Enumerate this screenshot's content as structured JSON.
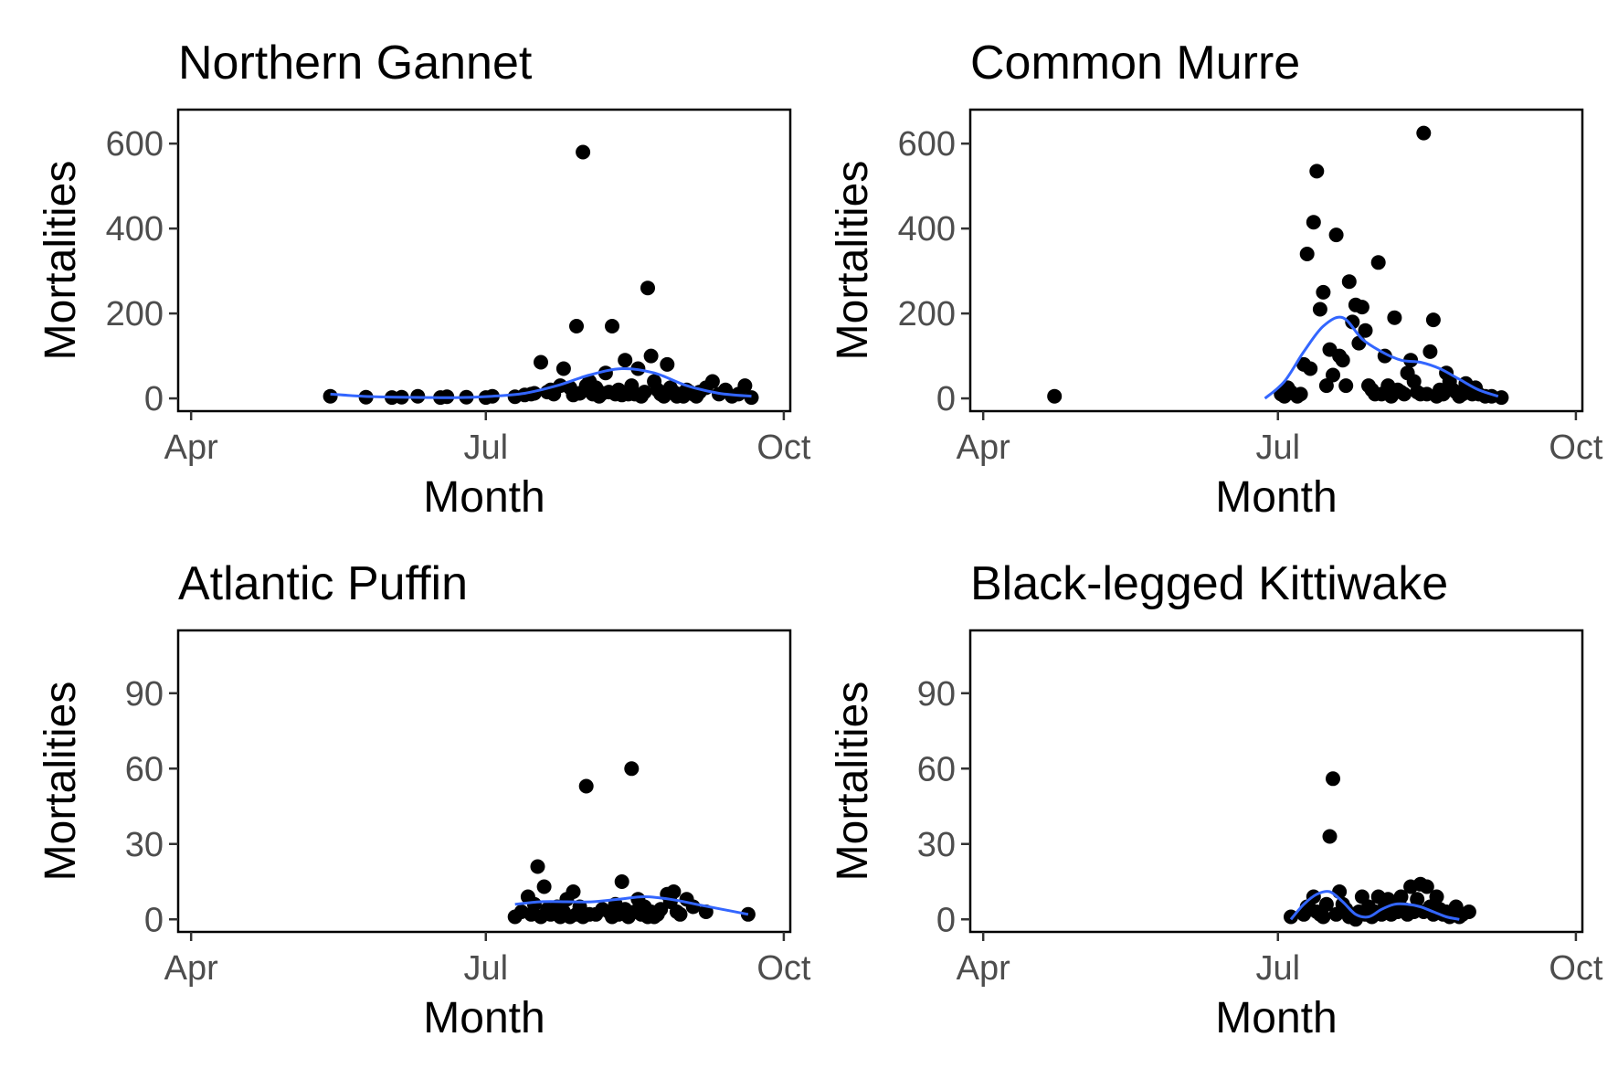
{
  "chart_data": [
    {
      "type": "scatter",
      "title": "Northern Gannet",
      "xlabel": "Month",
      "ylabel": "Mortalities",
      "x_ticks": [
        "Apr",
        "Jul",
        "Oct"
      ],
      "y_ticks": [
        0,
        200,
        400,
        600
      ],
      "xlim": [
        "Mar 28",
        "Oct 3"
      ],
      "ylim": [
        -30,
        680
      ],
      "grid": false,
      "series": [
        {
          "kind": "points",
          "x": [
            "May 14",
            "May 25",
            "Jun 2",
            "Jun 5",
            "Jun 10",
            "Jun 17",
            "Jun 19",
            "Jun 25",
            "Jul 1",
            "Jul 3",
            "Jul 10",
            "Jul 13",
            "Jul 15",
            "Jul 16",
            "Jul 18",
            "Jul 20",
            "Jul 21",
            "Jul 22",
            "Jul 24",
            "Jul 25",
            "Jul 27",
            "Jul 28",
            "Jul 29",
            "Jul 30",
            "Jul 31",
            "Aug 1",
            "Aug 2",
            "Aug 3",
            "Aug 4",
            "Aug 5",
            "Aug 6",
            "Aug 7",
            "Aug 8",
            "Aug 9",
            "Aug 10",
            "Aug 11",
            "Aug 12",
            "Aug 13",
            "Aug 14",
            "Aug 15",
            "Aug 16",
            "Aug 17",
            "Aug 18",
            "Aug 19",
            "Aug 20",
            "Aug 21",
            "Aug 22",
            "Aug 23",
            "Aug 24",
            "Aug 25",
            "Aug 26",
            "Aug 27",
            "Aug 28",
            "Aug 29",
            "Aug 30",
            "Aug 31",
            "Sep 1",
            "Sep 2",
            "Sep 3",
            "Sep 4",
            "Sep 5",
            "Sep 7",
            "Sep 9",
            "Sep 11",
            "Sep 13",
            "Sep 15",
            "Sep 17",
            "Sep 19",
            "Sep 21"
          ],
          "y": [
            5,
            3,
            2,
            3,
            5,
            2,
            4,
            3,
            2,
            5,
            4,
            8,
            10,
            12,
            85,
            15,
            20,
            10,
            30,
            70,
            25,
            8,
            170,
            12,
            580,
            30,
            40,
            10,
            25,
            5,
            12,
            60,
            15,
            170,
            10,
            20,
            8,
            90,
            10,
            30,
            10,
            70,
            5,
            15,
            260,
            100,
            40,
            20,
            10,
            5,
            80,
            25,
            15,
            5,
            10,
            5,
            20,
            15,
            10,
            5,
            15,
            25,
            40,
            10,
            20,
            5,
            10,
            30,
            2
          ]
        },
        {
          "kind": "smooth",
          "color": "#3366ff",
          "x": [
            "May 14",
            "May 24",
            "Jun 3",
            "Jun 13",
            "Jun 23",
            "Jul 3",
            "Jul 13",
            "Jul 23",
            "Aug 2",
            "Aug 12",
            "Aug 22",
            "Sep 1",
            "Sep 11",
            "Sep 21"
          ],
          "y": [
            10,
            5,
            3,
            2,
            2,
            5,
            12,
            30,
            55,
            70,
            60,
            30,
            12,
            5
          ]
        }
      ]
    },
    {
      "type": "scatter",
      "title": "Common Murre",
      "xlabel": "Month",
      "ylabel": "Mortalities",
      "x_ticks": [
        "Apr",
        "Jul",
        "Oct"
      ],
      "y_ticks": [
        0,
        200,
        400,
        600
      ],
      "xlim": [
        "Mar 28",
        "Oct 3"
      ],
      "ylim": [
        -30,
        680
      ],
      "grid": false,
      "series": [
        {
          "kind": "points",
          "x": [
            "Apr 23",
            "Jul 2",
            "Jul 3",
            "Jul 4",
            "Jul 5",
            "Jul 7",
            "Jul 8",
            "Jul 9",
            "Jul 10",
            "Jul 11",
            "Jul 12",
            "Jul 13",
            "Jul 14",
            "Jul 15",
            "Jul 16",
            "Jul 17",
            "Jul 18",
            "Jul 19",
            "Jul 20",
            "Jul 21",
            "Jul 22",
            "Jul 23",
            "Jul 24",
            "Jul 25",
            "Jul 26",
            "Jul 27",
            "Jul 28",
            "Jul 29",
            "Jul 30",
            "Jul 31",
            "Aug 1",
            "Aug 2",
            "Aug 3",
            "Aug 4",
            "Aug 5",
            "Aug 6",
            "Aug 7",
            "Aug 8",
            "Aug 9",
            "Aug 10",
            "Aug 11",
            "Aug 12",
            "Aug 13",
            "Aug 14",
            "Aug 15",
            "Aug 16",
            "Aug 17",
            "Aug 18",
            "Aug 19",
            "Aug 20",
            "Aug 21",
            "Aug 22",
            "Aug 23",
            "Aug 24",
            "Aug 25",
            "Aug 26",
            "Aug 27",
            "Aug 28",
            "Aug 29",
            "Aug 30",
            "Aug 31",
            "Sep 1",
            "Sep 3",
            "Sep 5",
            "Sep 8"
          ],
          "y": [
            5,
            10,
            5,
            25,
            15,
            5,
            10,
            80,
            340,
            70,
            415,
            535,
            210,
            250,
            30,
            115,
            55,
            385,
            100,
            90,
            30,
            275,
            180,
            220,
            130,
            215,
            160,
            30,
            20,
            10,
            320,
            10,
            100,
            30,
            5,
            190,
            20,
            15,
            10,
            60,
            90,
            40,
            15,
            10,
            625,
            10,
            110,
            185,
            5,
            20,
            10,
            60,
            40,
            20,
            15,
            5,
            10,
            35,
            20,
            10,
            25,
            10,
            5,
            5,
            2
          ]
        },
        {
          "kind": "smooth",
          "color": "#3366ff",
          "x": [
            "Jun 27",
            "Jul 3",
            "Jul 9",
            "Jul 15",
            "Jul 21",
            "Jul 27",
            "Aug 2",
            "Aug 8",
            "Aug 14",
            "Aug 20",
            "Aug 26",
            "Sep 1",
            "Sep 7"
          ],
          "y": [
            0,
            40,
            110,
            170,
            190,
            140,
            110,
            90,
            85,
            70,
            45,
            20,
            5
          ]
        }
      ]
    },
    {
      "type": "scatter",
      "title": "Atlantic Puffin",
      "xlabel": "Month",
      "ylabel": "Mortalities",
      "x_ticks": [
        "Apr",
        "Jul",
        "Oct"
      ],
      "y_ticks": [
        0,
        30,
        60,
        90
      ],
      "xlim": [
        "Mar 28",
        "Oct 3"
      ],
      "ylim": [
        -5,
        115
      ],
      "grid": false,
      "series": [
        {
          "kind": "points",
          "x": [
            "Jul 10",
            "Jul 12",
            "Jul 14",
            "Jul 15",
            "Jul 16",
            "Jul 17",
            "Jul 18",
            "Jul 19",
            "Jul 20",
            "Jul 21",
            "Jul 23",
            "Jul 24",
            "Jul 25",
            "Jul 26",
            "Jul 27",
            "Jul 28",
            "Jul 29",
            "Jul 30",
            "Jul 31",
            "Aug 1",
            "Aug 2",
            "Aug 4",
            "Aug 6",
            "Aug 8",
            "Aug 9",
            "Aug 10",
            "Aug 11",
            "Aug 12",
            "Aug 13",
            "Aug 14",
            "Aug 15",
            "Aug 16",
            "Aug 17",
            "Aug 18",
            "Aug 19",
            "Aug 20",
            "Aug 21",
            "Aug 22",
            "Aug 23",
            "Aug 24",
            "Aug 26",
            "Aug 27",
            "Aug 28",
            "Aug 29",
            "Aug 30",
            "Sep 1",
            "Sep 3",
            "Sep 7",
            "Sep 20"
          ],
          "y": [
            1,
            3,
            9,
            2,
            6,
            21,
            1,
            13,
            4,
            2,
            5,
            1,
            3,
            8,
            1,
            11,
            2,
            5,
            1,
            53,
            2,
            2,
            4,
            3,
            1,
            6,
            2,
            15,
            4,
            1,
            60,
            3,
            8,
            2,
            5,
            1,
            3,
            1,
            2,
            4,
            10,
            7,
            11,
            3,
            2,
            8,
            5,
            3,
            2
          ]
        },
        {
          "kind": "smooth",
          "color": "#3366ff",
          "x": [
            "Jul 10",
            "Jul 18",
            "Jul 26",
            "Aug 3",
            "Aug 11",
            "Aug 19",
            "Aug 27",
            "Sep 4",
            "Sep 12",
            "Sep 20"
          ],
          "y": [
            6,
            7,
            7,
            7,
            8,
            9,
            8,
            6,
            4,
            2
          ]
        }
      ]
    },
    {
      "type": "scatter",
      "title": "Black-legged Kittiwake",
      "xlabel": "Month",
      "ylabel": "Mortalities",
      "x_ticks": [
        "Apr",
        "Jul",
        "Oct"
      ],
      "y_ticks": [
        0,
        30,
        60,
        90
      ],
      "xlim": [
        "Mar 28",
        "Oct 3"
      ],
      "ylim": [
        -5,
        115
      ],
      "grid": false,
      "series": [
        {
          "kind": "points",
          "x": [
            "Jul 5",
            "Jul 9",
            "Jul 10",
            "Jul 11",
            "Jul 12",
            "Jul 13",
            "Jul 14",
            "Jul 15",
            "Jul 16",
            "Jul 17",
            "Jul 18",
            "Jul 19",
            "Jul 20",
            "Jul 21",
            "Jul 22",
            "Jul 23",
            "Jul 24",
            "Jul 25",
            "Jul 26",
            "Jul 27",
            "Jul 28",
            "Jul 29",
            "Jul 30",
            "Jul 31",
            "Aug 1",
            "Aug 2",
            "Aug 3",
            "Aug 4",
            "Aug 5",
            "Aug 6",
            "Aug 7",
            "Aug 8",
            "Aug 9",
            "Aug 10",
            "Aug 11",
            "Aug 12",
            "Aug 13",
            "Aug 14",
            "Aug 15",
            "Aug 16",
            "Aug 17",
            "Aug 18",
            "Aug 19",
            "Aug 20",
            "Aug 21",
            "Aug 22",
            "Aug 23",
            "Aug 24",
            "Aug 25",
            "Aug 26",
            "Aug 27",
            "Aug 29"
          ],
          "y": [
            1,
            2,
            5,
            4,
            9,
            3,
            2,
            1,
            6,
            33,
            56,
            2,
            11,
            6,
            4,
            1,
            2,
            0,
            3,
            9,
            2,
            5,
            1,
            3,
            9,
            2,
            5,
            8,
            2,
            6,
            3,
            9,
            4,
            2,
            13,
            3,
            8,
            14,
            3,
            13,
            5,
            2,
            9,
            4,
            2,
            3,
            1,
            2,
            5,
            1,
            2,
            3
          ]
        },
        {
          "kind": "smooth",
          "color": "#3366ff",
          "x": [
            "Jul 5",
            "Jul 9",
            "Jul 13",
            "Jul 17",
            "Jul 21",
            "Jul 25",
            "Jul 29",
            "Aug 2",
            "Aug 6",
            "Aug 10",
            "Aug 14",
            "Aug 18",
            "Aug 22",
            "Aug 26"
          ],
          "y": [
            0,
            6,
            10,
            11,
            7,
            2,
            1,
            4,
            6,
            6,
            5,
            3,
            1,
            0
          ]
        }
      ]
    }
  ]
}
